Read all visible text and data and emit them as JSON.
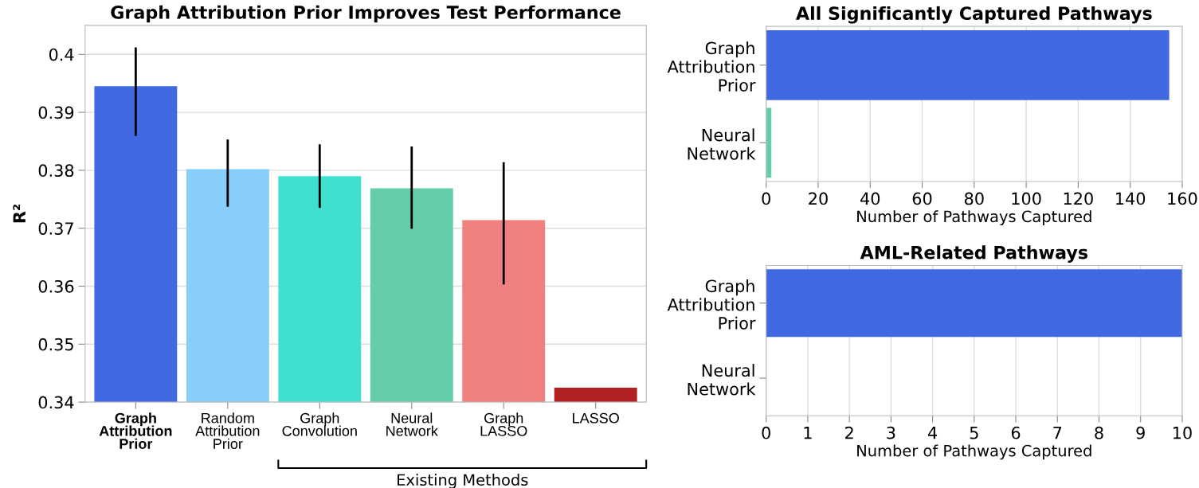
{
  "chart_data": [
    {
      "type": "bar",
      "title": "Graph Attribution Prior Improves Test Performance",
      "ylabel": "R²",
      "categories": [
        "Graph\nAttribution\nPrior",
        "Random\nAttribution\nPrior",
        "Graph\nConvolution",
        "Neural\nNetwork",
        "Graph\nLASSO",
        "LASSO"
      ],
      "values": [
        0.3945,
        0.3802,
        0.379,
        0.3769,
        0.3714,
        0.3425
      ],
      "colors": [
        "#4169e1",
        "#87cefa",
        "#40e0d0",
        "#66cdaa",
        "#f08080",
        "#b22222"
      ],
      "errors": [
        [
          0.3861,
          0.401
        ],
        [
          0.3739,
          0.3851
        ],
        [
          0.3737,
          0.3843
        ],
        [
          0.3701,
          0.3839
        ],
        [
          0.3605,
          0.3812
        ],
        null
      ],
      "ylim": [
        0.34,
        0.405
      ],
      "yticks": [
        0.34,
        0.35,
        0.36,
        0.37,
        0.38,
        0.39,
        0.4
      ],
      "grid": "y",
      "annotations": [
        "Existing Methods"
      ]
    },
    {
      "type": "bar",
      "orientation": "horizontal",
      "title": "All Significantly Captured Pathways",
      "xlabel": "Number of Pathways Captured",
      "categories": [
        "Graph\nAttribution\nPrior",
        "Neural\nNetwork"
      ],
      "values": [
        155,
        2
      ],
      "colors": [
        "#4169e1",
        "#66cdaa"
      ],
      "xlim": [
        0,
        160
      ],
      "xticks": [
        0,
        20,
        40,
        60,
        80,
        100,
        120,
        140,
        160
      ],
      "grid": "x"
    },
    {
      "type": "bar",
      "orientation": "horizontal",
      "title": "AML-Related Pathways",
      "xlabel": "Number of Pathways Captured",
      "categories": [
        "Graph\nAttribution\nPrior",
        "Neural\nNetwork"
      ],
      "values": [
        10,
        0
      ],
      "colors": [
        "#4169e1",
        "#66cdaa"
      ],
      "xlim": [
        0,
        10
      ],
      "xticks": [
        0,
        1,
        2,
        3,
        4,
        5,
        6,
        7,
        8,
        9,
        10
      ],
      "grid": "x"
    }
  ]
}
